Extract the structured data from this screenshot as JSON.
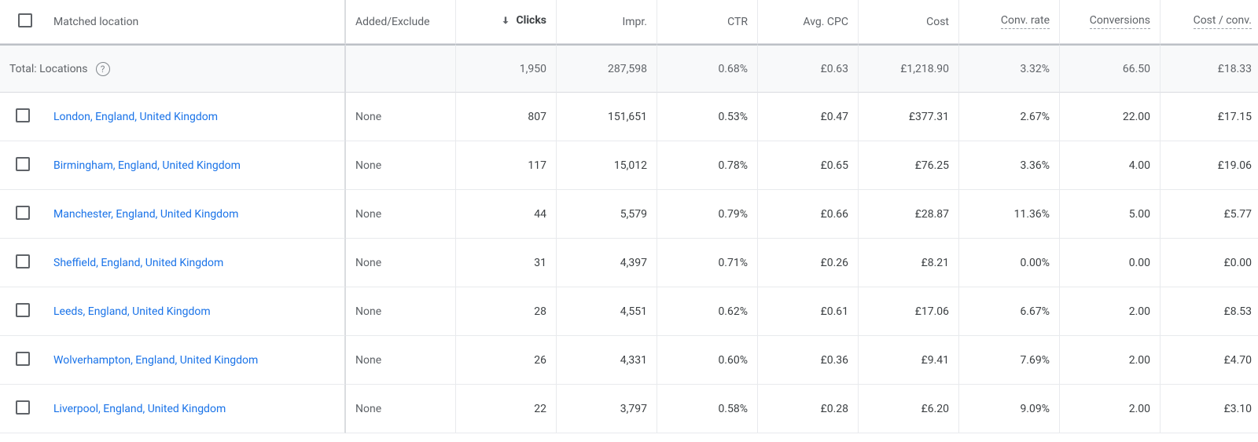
{
  "colors": {
    "text_primary": "#3c4043",
    "text_secondary": "#5f6368",
    "text_muted": "#80868b",
    "link": "#1a73e8",
    "border": "#dadce0",
    "border_light": "#e8eaed",
    "bg_total_row": "#f8f9fa",
    "dotted_underline": "#9aa0a6",
    "checkbox_border": "#5f6368",
    "separator_strong": "#bdc1c6"
  },
  "table": {
    "type": "table",
    "sorted_column_index": 2,
    "sort_direction": "desc",
    "columns": [
      {
        "key": "location",
        "label": "Matched location",
        "align": "left"
      },
      {
        "key": "added",
        "label": "Added/Excluded",
        "align": "left",
        "truncated_label": "Added/Exclude"
      },
      {
        "key": "clicks",
        "label": "Clicks",
        "align": "right",
        "sorted": true
      },
      {
        "key": "impr",
        "label": "Impr.",
        "align": "right"
      },
      {
        "key": "ctr",
        "label": "CTR",
        "align": "right"
      },
      {
        "key": "avg_cpc",
        "label": "Avg. CPC",
        "align": "right"
      },
      {
        "key": "cost",
        "label": "Cost",
        "align": "right"
      },
      {
        "key": "conv_rate",
        "label": "Conv. rate",
        "align": "right",
        "dotted": true
      },
      {
        "key": "conversions",
        "label": "Conversions",
        "align": "right",
        "dotted": true
      },
      {
        "key": "cost_conv",
        "label": "Cost / conv.",
        "align": "right",
        "dotted": true
      }
    ],
    "totals": {
      "label": "Total: Locations",
      "help_glyph": "?",
      "values": {
        "added": "",
        "clicks": "1,950",
        "impr": "287,598",
        "ctr": "0.68%",
        "avg_cpc": "£0.63",
        "cost": "£1,218.90",
        "conv_rate": "3.32%",
        "conversions": "66.50",
        "cost_conv": "£18.33"
      }
    },
    "rows": [
      {
        "location": "London, England, United Kingdom",
        "added": "None",
        "clicks": "807",
        "impr": "151,651",
        "ctr": "0.53%",
        "avg_cpc": "£0.47",
        "cost": "£377.31",
        "conv_rate": "2.67%",
        "conversions": "22.00",
        "cost_conv": "£17.15"
      },
      {
        "location": "Birmingham, England, United Kingdom",
        "added": "None",
        "clicks": "117",
        "impr": "15,012",
        "ctr": "0.78%",
        "avg_cpc": "£0.65",
        "cost": "£76.25",
        "conv_rate": "3.36%",
        "conversions": "4.00",
        "cost_conv": "£19.06"
      },
      {
        "location": "Manchester, England, United Kingdom",
        "added": "None",
        "clicks": "44",
        "impr": "5,579",
        "ctr": "0.79%",
        "avg_cpc": "£0.66",
        "cost": "£28.87",
        "conv_rate": "11.36%",
        "conversions": "5.00",
        "cost_conv": "£5.77"
      },
      {
        "location": "Sheffield, England, United Kingdom",
        "added": "None",
        "clicks": "31",
        "impr": "4,397",
        "ctr": "0.71%",
        "avg_cpc": "£0.26",
        "cost": "£8.21",
        "conv_rate": "0.00%",
        "conversions": "0.00",
        "cost_conv": "£0.00"
      },
      {
        "location": "Leeds, England, United Kingdom",
        "added": "None",
        "clicks": "28",
        "impr": "4,551",
        "ctr": "0.62%",
        "avg_cpc": "£0.61",
        "cost": "£17.06",
        "conv_rate": "6.67%",
        "conversions": "2.00",
        "cost_conv": "£8.53"
      },
      {
        "location": "Wolverhampton, England, United Kingdom",
        "added": "None",
        "clicks": "26",
        "impr": "4,331",
        "ctr": "0.60%",
        "avg_cpc": "£0.36",
        "cost": "£9.41",
        "conv_rate": "7.69%",
        "conversions": "2.00",
        "cost_conv": "£4.70"
      },
      {
        "location": "Liverpool, England, United Kingdom",
        "added": "None",
        "clicks": "22",
        "impr": "3,797",
        "ctr": "0.58%",
        "avg_cpc": "£0.28",
        "cost": "£6.20",
        "conv_rate": "9.09%",
        "conversions": "2.00",
        "cost_conv": "£3.10"
      }
    ]
  }
}
